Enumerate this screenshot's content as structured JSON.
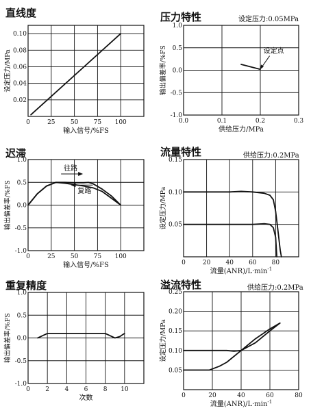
{
  "chart_data": [
    {
      "type": "line",
      "title": "直线度",
      "condition": "",
      "xlabel": "输入信号/%FS",
      "ylabel": "设定压力/MPa",
      "xlim": [
        0,
        125
      ],
      "ylim": [
        0,
        0.11
      ],
      "xticks": [
        0,
        25,
        50,
        75,
        100
      ],
      "yticks": [
        0.02,
        0.04,
        0.06,
        0.08,
        0.1
      ],
      "ytick_labels": [
        "0.02",
        "0.04",
        "0.06",
        "0.08",
        "0.10"
      ],
      "grid": true,
      "series": [
        {
          "x": [
            3,
            100
          ],
          "y": [
            0.002,
            0.1
          ]
        }
      ],
      "annotations": []
    },
    {
      "type": "line",
      "title": "压力特性",
      "condition": "设定压力:0.05MPa",
      "xlabel": "供给压力/MPa",
      "ylabel": "输出偏差率/%FS",
      "xlim": [
        0,
        0.3
      ],
      "ylim": [
        -1.0,
        1.0
      ],
      "xticks": [
        0,
        0.1,
        0.2,
        0.3
      ],
      "xtick_labels": [
        "0.0",
        "0.1",
        "0.2",
        "0.3"
      ],
      "yticks": [
        -1.0,
        -0.5,
        0,
        0.5,
        1.0
      ],
      "ytick_labels": [
        "-1.0",
        "-0.5",
        "0.0",
        "0.5",
        "1.0"
      ],
      "grid": true,
      "series": [
        {
          "x": [
            0.15,
            0.2
          ],
          "y": [
            0.13,
            0.02
          ]
        }
      ],
      "annotations": [
        {
          "text": "设定点",
          "x": 0.2,
          "y": 0.02,
          "label_x": 0.235,
          "label_y": 0.35
        }
      ]
    },
    {
      "type": "line",
      "title": "迟滞",
      "condition": "",
      "xlabel": "输入信号/%FS",
      "ylabel": "输出偏差率/%FS",
      "xlim": [
        0,
        125
      ],
      "ylim": [
        -1.0,
        1.0
      ],
      "xticks": [
        0,
        25,
        50,
        75,
        100
      ],
      "yticks": [
        -1.0,
        -0.5,
        0,
        0.5,
        1.0
      ],
      "ytick_labels": [
        "-1.0",
        "-0.5",
        "0.0",
        "0.5",
        "1.0"
      ],
      "grid": true,
      "series": [
        {
          "x": [
            0,
            10,
            20,
            30,
            40,
            50,
            60,
            65,
            70,
            80,
            90,
            100
          ],
          "y": [
            0.0,
            0.25,
            0.42,
            0.5,
            0.5,
            0.49,
            0.49,
            0.5,
            0.47,
            0.35,
            0.2,
            0.0
          ]
        },
        {
          "x": [
            0,
            10,
            20,
            30,
            40,
            50,
            60,
            70,
            80,
            90,
            100
          ],
          "y": [
            0.0,
            0.25,
            0.42,
            0.5,
            0.48,
            0.45,
            0.42,
            0.38,
            0.3,
            0.15,
            0.0
          ]
        }
      ],
      "annotations": [
        {
          "text": "往路",
          "x": 43,
          "y": 0.7,
          "arrow": "right"
        },
        {
          "text": "复路",
          "x": 58,
          "y": 0.2,
          "arrow": "left"
        }
      ]
    },
    {
      "type": "line",
      "title": "流量特性",
      "condition": "供给压力:0.2MPa",
      "xlabel": "流量(ANR)/L·min",
      "xlabel_sup": "-1",
      "ylabel": "设定压力/MPa",
      "xlim": [
        0,
        100
      ],
      "ylim": [
        0,
        0.15
      ],
      "xticks": [
        0,
        20,
        40,
        60,
        80
      ],
      "yticks": [
        0.05,
        0.1,
        0.15
      ],
      "ytick_labels": [
        "0.05",
        "0.10",
        "0.15"
      ],
      "grid": true,
      "series": [
        {
          "x": [
            0,
            10,
            20,
            30,
            40,
            50,
            60,
            70,
            75,
            78,
            80,
            82,
            84,
            85
          ],
          "y": [
            0.1,
            0.1,
            0.1,
            0.1,
            0.1,
            0.101,
            0.1,
            0.098,
            0.095,
            0.088,
            0.07,
            0.04,
            0.01,
            0.0
          ]
        },
        {
          "x": [
            0,
            10,
            20,
            30,
            40,
            50,
            60,
            70,
            75,
            78,
            80,
            81
          ],
          "y": [
            0.05,
            0.05,
            0.05,
            0.05,
            0.05,
            0.05,
            0.05,
            0.051,
            0.05,
            0.045,
            0.03,
            0.0
          ]
        }
      ],
      "annotations": []
    },
    {
      "type": "line",
      "title": "重复精度",
      "condition": "",
      "xlabel": "次数",
      "ylabel": "输出偏差率/%FS",
      "xlim": [
        0,
        12
      ],
      "ylim": [
        -1.0,
        1.0
      ],
      "xticks": [
        0,
        2,
        4,
        6,
        8,
        10
      ],
      "yticks": [
        -1.0,
        -0.5,
        0,
        0.5,
        1.0
      ],
      "ytick_labels": [
        "-1.0",
        "-0.5",
        "0.0",
        "0.5",
        "1.0"
      ],
      "grid": true,
      "series": [
        {
          "x": [
            1,
            1.5,
            2,
            3,
            4,
            5,
            6,
            7,
            8,
            8.5,
            9,
            9.5,
            10
          ],
          "y": [
            0.0,
            0.05,
            0.1,
            0.1,
            0.1,
            0.1,
            0.1,
            0.1,
            0.1,
            0.05,
            0.0,
            0.03,
            0.1
          ]
        }
      ],
      "annotations": []
    },
    {
      "type": "line",
      "title": "溢流特性",
      "condition": "供给压力:0.2MPa",
      "xlabel": "流量(ANR)/L·min",
      "xlabel_sup": "-1",
      "ylabel": "设定压力/MPa",
      "xlim": [
        0,
        80
      ],
      "ylim": [
        0,
        0.25
      ],
      "xticks": [
        0,
        20,
        40,
        60,
        80
      ],
      "yticks": [
        0.05,
        0.1,
        0.15,
        0.2,
        0.25
      ],
      "ytick_labels": [
        "0.05",
        "0.10",
        "0.15",
        "0.20",
        "0.25"
      ],
      "grid": true,
      "series": [
        {
          "x": [
            0,
            10,
            20,
            30,
            35,
            40,
            50,
            60,
            67
          ],
          "y": [
            0.1,
            0.1,
            0.1,
            0.1,
            0.098,
            0.1,
            0.12,
            0.15,
            0.17
          ]
        },
        {
          "x": [
            0,
            10,
            18,
            25,
            30,
            40,
            50,
            60,
            67
          ],
          "y": [
            0.05,
            0.05,
            0.05,
            0.06,
            0.07,
            0.1,
            0.13,
            0.155,
            0.17
          ]
        }
      ],
      "annotations": []
    }
  ]
}
